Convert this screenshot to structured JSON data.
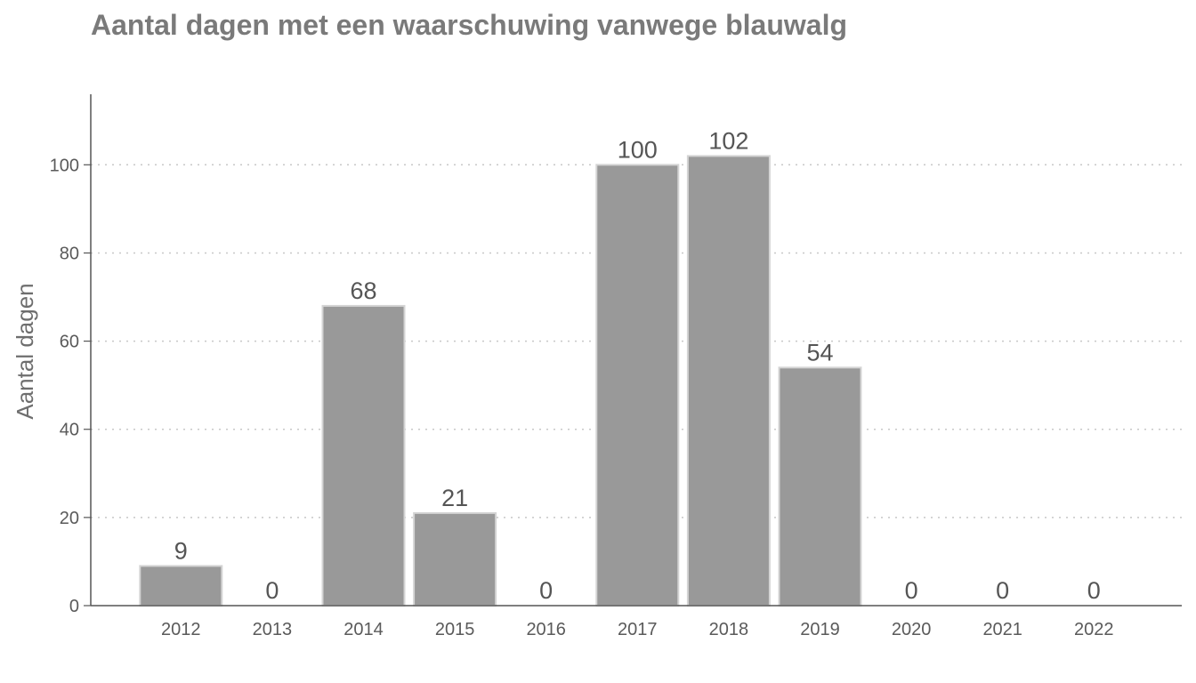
{
  "chart_data": {
    "type": "bar",
    "title": "Aantal dagen met een waarschuwing vanwege blauwalg",
    "ylabel": "Aantal dagen",
    "xlabel": "",
    "categories": [
      "2012",
      "2013",
      "2014",
      "2015",
      "2016",
      "2017",
      "2018",
      "2019",
      "2020",
      "2021",
      "2022"
    ],
    "values": [
      9,
      0,
      68,
      21,
      0,
      100,
      102,
      54,
      0,
      0,
      0
    ],
    "ylim": [
      0,
      116
    ],
    "yticks": [
      0,
      20,
      40,
      60,
      80,
      100
    ],
    "grid": "horizontal-dotted",
    "legend": "none",
    "colors": {
      "bar_fill": "#999999",
      "bar_stroke": "#d4d4d4",
      "axis": "#555555",
      "grid": "#c8c8c8",
      "title": "#7a7a7a"
    }
  }
}
